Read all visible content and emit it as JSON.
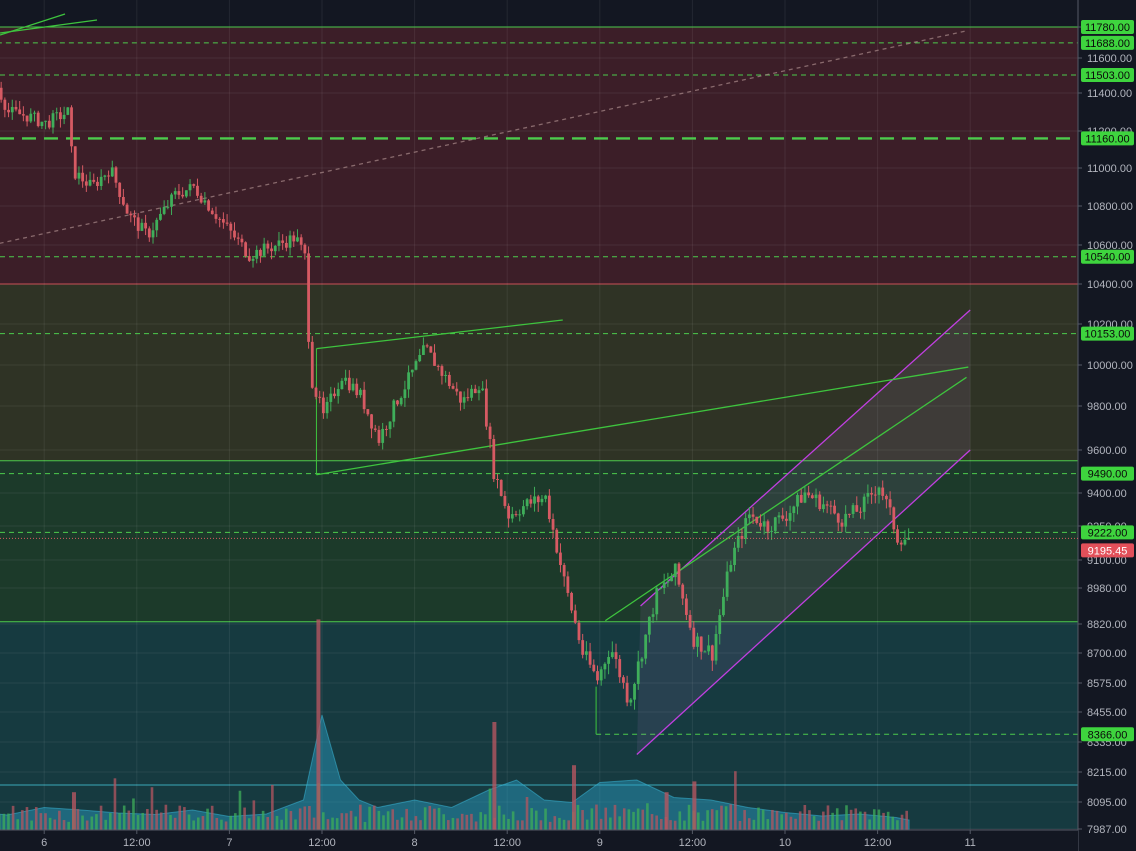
{
  "chart_data": {
    "type": "candlestick",
    "title": "",
    "xlabel": "",
    "ylabel": "",
    "grid": true,
    "y_axis": {
      "ticks": [
        11780,
        11600,
        11400,
        11200,
        11000,
        10800,
        10600,
        10400,
        10200,
        10000,
        9800,
        9600,
        9400,
        9250,
        9100,
        8980,
        8820,
        8700,
        8575,
        8455,
        8335,
        8215,
        8095,
        7987
      ],
      "tick_labels": [
        "11780.00",
        "11600.00",
        "11400.00",
        "11200.00",
        "11000.00",
        "10800.00",
        "10600.00",
        "10400.00",
        "10200.00",
        "10000.00",
        "9800.00",
        "9600.00",
        "9400.00",
        "9250.00",
        "9100.00",
        "8980.00",
        "8820.00",
        "8700.00",
        "8575.00",
        "8455.00",
        "8335.00",
        "8215.00",
        "8095.00",
        "7987.00"
      ]
    },
    "x_axis": {
      "ticks": [
        0.5,
        1,
        1.5,
        2,
        2.5,
        3,
        3.5,
        4,
        4.5,
        5,
        5.5,
        6
      ],
      "tick_labels": [
        "12:00",
        "6",
        "12:00",
        "7",
        "12:00",
        "8",
        "12:00",
        "9",
        "12:00",
        "10",
        "12:00",
        "11"
      ]
    },
    "zones": [
      {
        "name": "resistance",
        "from": 10400,
        "to": 11780,
        "color": "#3c1e28"
      },
      {
        "name": "middle",
        "from": 9550,
        "to": 10400,
        "color": "#2f3325"
      },
      {
        "name": "support",
        "from": 8830,
        "to": 9550,
        "color": "#1c3a2a"
      },
      {
        "name": "lower",
        "from": 7987,
        "to": 8830,
        "color": "#163a40"
      }
    ],
    "levels": [
      {
        "label": "11780.00",
        "value": 11780,
        "style": "solid"
      },
      {
        "label": "11688.00",
        "value": 11688,
        "style": "dashed"
      },
      {
        "label": "11503.00",
        "value": 11503,
        "style": "dashed"
      },
      {
        "label": "11160.00",
        "value": 11160,
        "style": "thick-dashed"
      },
      {
        "label": "10540.00",
        "value": 10540,
        "style": "dashed"
      },
      {
        "label": "10153.00",
        "value": 10153,
        "style": "dashed"
      },
      {
        "label": "9490.00",
        "value": 9490,
        "style": "dashed"
      },
      {
        "label": "9222.00",
        "value": 9222,
        "style": "dashed"
      },
      {
        "label": "8366.00",
        "value": 8366,
        "style": "dashed"
      }
    ],
    "current_price": {
      "label": "9195.45",
      "value": 9195.45
    },
    "close_path": [
      [
        0.0,
        11560
      ],
      [
        0.15,
        11450
      ],
      [
        0.3,
        11480
      ],
      [
        0.5,
        11530
      ],
      [
        0.55,
        11700
      ],
      [
        0.7,
        11600
      ],
      [
        0.72,
        11480
      ],
      [
        0.8,
        11300
      ],
      [
        0.9,
        11280
      ],
      [
        1.0,
        11240
      ],
      [
        1.12,
        11300
      ],
      [
        1.15,
        10980
      ],
      [
        1.25,
        10900
      ],
      [
        1.35,
        11000
      ],
      [
        1.45,
        10750
      ],
      [
        1.55,
        10650
      ],
      [
        1.7,
        10860
      ],
      [
        1.8,
        10900
      ],
      [
        1.95,
        10720
      ],
      [
        2.1,
        10550
      ],
      [
        2.25,
        10600
      ],
      [
        2.35,
        10640
      ],
      [
        2.4,
        10540
      ],
      [
        2.43,
        9950
      ],
      [
        2.5,
        9750
      ],
      [
        2.6,
        9950
      ],
      [
        2.7,
        9850
      ],
      [
        2.8,
        9650
      ],
      [
        2.9,
        9830
      ],
      [
        3.05,
        10080
      ],
      [
        3.15,
        9950
      ],
      [
        3.25,
        9820
      ],
      [
        3.35,
        9920
      ],
      [
        3.42,
        9500
      ],
      [
        3.5,
        9300
      ],
      [
        3.6,
        9350
      ],
      [
        3.7,
        9380
      ],
      [
        3.8,
        9010
      ],
      [
        3.9,
        8700
      ],
      [
        3.98,
        8590
      ],
      [
        4.05,
        8730
      ],
      [
        4.15,
        8500
      ],
      [
        4.3,
        8950
      ],
      [
        4.4,
        9050
      ],
      [
        4.5,
        8760
      ],
      [
        4.6,
        8700
      ],
      [
        4.7,
        9100
      ],
      [
        4.8,
        9300
      ],
      [
        4.9,
        9250
      ],
      [
        5.0,
        9300
      ],
      [
        5.1,
        9400
      ],
      [
        5.2,
        9350
      ],
      [
        5.3,
        9280
      ],
      [
        5.4,
        9330
      ],
      [
        5.5,
        9440
      ],
      [
        5.55,
        9330
      ],
      [
        5.6,
        9200
      ],
      [
        5.67,
        9195
      ]
    ],
    "volume": {
      "area": [
        [
          0.0,
          30
        ],
        [
          0.2,
          36
        ],
        [
          0.4,
          32
        ],
        [
          0.6,
          38
        ],
        [
          0.8,
          30
        ],
        [
          1.0,
          45
        ],
        [
          1.2,
          40
        ],
        [
          1.4,
          34
        ],
        [
          1.6,
          31
        ],
        [
          1.8,
          40
        ],
        [
          2.0,
          27
        ],
        [
          2.2,
          32
        ],
        [
          2.4,
          60
        ],
        [
          2.5,
          230
        ],
        [
          2.6,
          100
        ],
        [
          2.7,
          60
        ],
        [
          2.8,
          45
        ],
        [
          3.0,
          60
        ],
        [
          3.2,
          45
        ],
        [
          3.4,
          80
        ],
        [
          3.55,
          100
        ],
        [
          3.7,
          60
        ],
        [
          3.85,
          55
        ],
        [
          4.0,
          95
        ],
        [
          4.2,
          100
        ],
        [
          4.4,
          65
        ],
        [
          4.6,
          60
        ],
        [
          4.8,
          45
        ],
        [
          5.0,
          35
        ],
        [
          5.2,
          28
        ],
        [
          5.4,
          32
        ],
        [
          5.6,
          25
        ],
        [
          5.67,
          20
        ]
      ],
      "spikes": [
        [
          1.15,
          140
        ],
        [
          2.47,
          780
        ],
        [
          3.42,
          400
        ],
        [
          3.85,
          240
        ],
        [
          4.35,
          140
        ],
        [
          4.5,
          180
        ]
      ]
    },
    "trendlines": [
      {
        "name": "channel-upper",
        "color": "#c03fe0",
        "from": [
          4.22,
          8900
        ],
        "to": [
          6.0,
          10270
        ]
      },
      {
        "name": "channel-lower",
        "color": "#c03fe0",
        "from": [
          4.2,
          8285
        ],
        "to": [
          6.0,
          9600
        ]
      },
      {
        "name": "wedge-upper",
        "color": "#3ec43e",
        "from": [
          2.47,
          10080
        ],
        "to": [
          3.8,
          10220
        ]
      },
      {
        "name": "wedge-lower",
        "color": "#3ec43e",
        "from": [
          2.47,
          9485
        ],
        "to": [
          5.99,
          9990
        ]
      },
      {
        "name": "rising-support",
        "color": "#3ec43e",
        "from": [
          4.03,
          8835
        ],
        "to": [
          5.98,
          9940
        ]
      },
      {
        "name": "long-diagonal",
        "color": "#aa8a8a",
        "from": [
          0.0,
          10450
        ],
        "to": [
          5.99,
          11760
        ]
      }
    ]
  }
}
